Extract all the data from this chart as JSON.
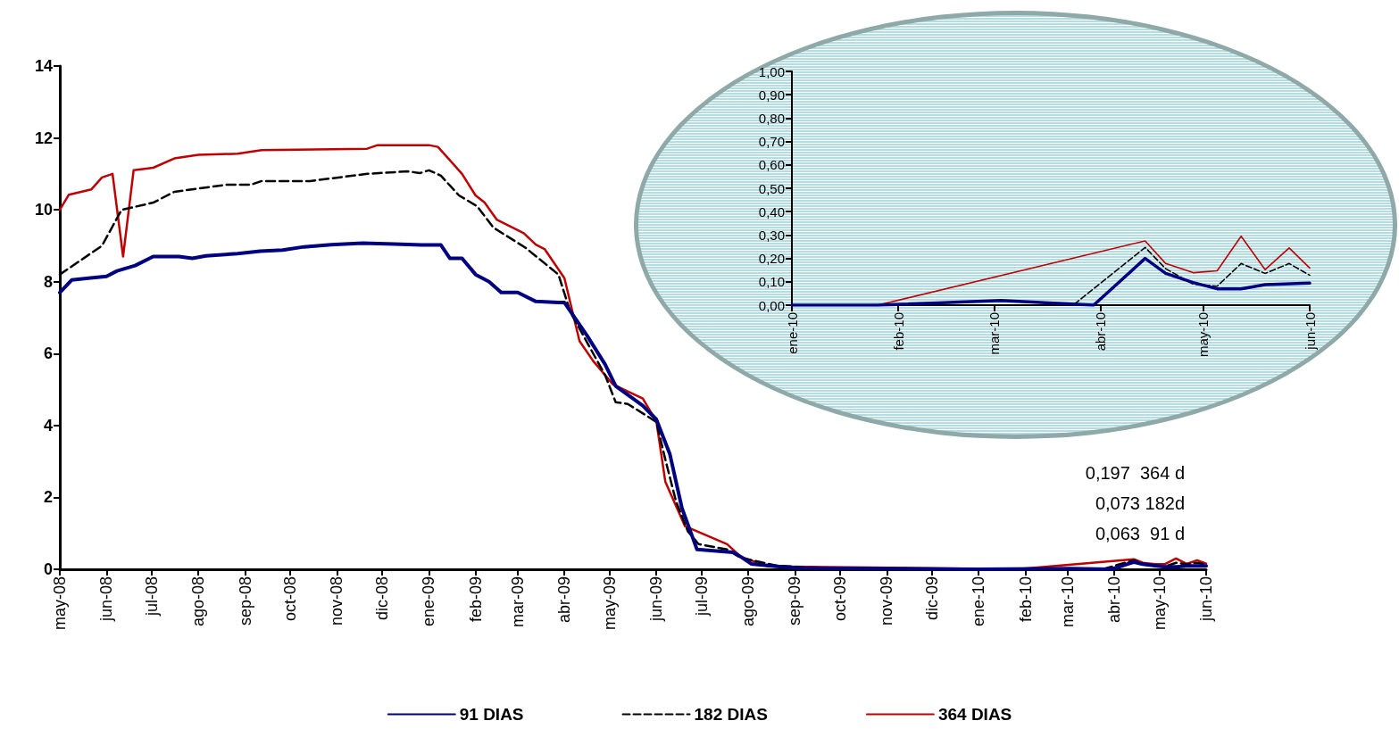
{
  "chart_data": [
    {
      "type": "line",
      "xlim": [
        "2008-05-01",
        "2010-06-01"
      ],
      "ylim": [
        0,
        14
      ],
      "yticks": [
        0,
        2,
        4,
        6,
        8,
        10,
        12,
        14
      ],
      "xticks": [
        {
          "value": "2008-05-01",
          "label": "may-08"
        },
        {
          "value": "2008-06-01",
          "label": "jun-08"
        },
        {
          "value": "2008-07-01",
          "label": "jul-08"
        },
        {
          "value": "2008-08-01",
          "label": "ago-08"
        },
        {
          "value": "2008-09-01",
          "label": "sep-08"
        },
        {
          "value": "2008-10-01",
          "label": "oct-08"
        },
        {
          "value": "2008-11-01",
          "label": "nov-08"
        },
        {
          "value": "2008-12-01",
          "label": "dic-08"
        },
        {
          "value": "2009-01-01",
          "label": "ene-09"
        },
        {
          "value": "2009-02-01",
          "label": "feb-09"
        },
        {
          "value": "2009-03-01",
          "label": "mar-09"
        },
        {
          "value": "2009-04-01",
          "label": "abr-09"
        },
        {
          "value": "2009-05-01",
          "label": "may-09"
        },
        {
          "value": "2009-06-01",
          "label": "jun-09"
        },
        {
          "value": "2009-07-01",
          "label": "jul-09"
        },
        {
          "value": "2009-08-01",
          "label": "ago-09"
        },
        {
          "value": "2009-09-01",
          "label": "sep-09"
        },
        {
          "value": "2009-10-01",
          "label": "oct-09"
        },
        {
          "value": "2009-11-01",
          "label": "nov-09"
        },
        {
          "value": "2009-12-01",
          "label": "dic-09"
        },
        {
          "value": "2010-01-01",
          "label": "ene-10"
        },
        {
          "value": "2010-02-01",
          "label": "feb-10"
        },
        {
          "value": "2010-03-01",
          "label": "mar-10"
        },
        {
          "value": "2010-04-01",
          "label": "abr-10"
        },
        {
          "value": "2010-05-01",
          "label": "may-10"
        },
        {
          "value": "2010-06-01",
          "label": "jun-10"
        }
      ],
      "grid": false,
      "legend": "bottom",
      "marker": "none",
      "annotations": [
        "0,197  364 d",
        "0,073 182d",
        "0,063  91 d"
      ],
      "series": [
        {
          "name": "91 DIAS",
          "color": "#000080",
          "line_style": "solid",
          "x": [
            "2008-05-01",
            "2008-05-09",
            "2008-05-20",
            "2008-06-01",
            "2008-06-08",
            "2008-06-20",
            "2008-07-02",
            "2008-07-19",
            "2008-07-28",
            "2008-08-06",
            "2008-08-27",
            "2008-09-11",
            "2008-09-26",
            "2008-10-10",
            "2008-10-28",
            "2008-11-18",
            "2008-12-09",
            "2008-12-27",
            "2009-01-09",
            "2009-01-15",
            "2009-01-23",
            "2009-02-01",
            "2009-02-10",
            "2009-02-18",
            "2009-03-01",
            "2009-03-13",
            "2009-03-28",
            "2009-04-01",
            "2009-04-16",
            "2009-04-28",
            "2009-05-05",
            "2009-05-23",
            "2009-06-01",
            "2009-06-10",
            "2009-06-18",
            "2009-06-28",
            "2009-07-22",
            "2009-07-27",
            "2009-08-03",
            "2009-08-20",
            "2009-09-02",
            "2010-01-01",
            "2010-03-03",
            "2010-03-30",
            "2010-04-14",
            "2010-04-20",
            "2010-04-28",
            "2010-05-05",
            "2010-05-12",
            "2010-05-19",
            "2010-06-01"
          ],
          "values": [
            7.7,
            8.05,
            8.1,
            8.15,
            8.3,
            8.45,
            8.7,
            8.7,
            8.65,
            8.72,
            8.78,
            8.85,
            8.88,
            8.97,
            9.03,
            9.07,
            9.05,
            9.02,
            9.02,
            8.65,
            8.65,
            8.2,
            8.0,
            7.7,
            7.7,
            7.45,
            7.42,
            7.42,
            6.5,
            5.7,
            5.1,
            4.55,
            4.17,
            3.2,
            1.7,
            0.55,
            0.47,
            0.35,
            0.15,
            0.08,
            0.03,
            0.0,
            0.02,
            0.0,
            0.2,
            0.14,
            0.1,
            0.07,
            0.07,
            0.09,
            0.09
          ]
        },
        {
          "name": "182 DIAS",
          "color": "#000000",
          "line_style": "dashed",
          "x": [
            "2008-05-01",
            "2008-05-29",
            "2008-06-11",
            "2008-07-02",
            "2008-07-16",
            "2008-08-20",
            "2008-09-05",
            "2008-09-12",
            "2008-10-14",
            "2008-11-21",
            "2008-12-18",
            "2008-12-26",
            "2009-01-01",
            "2009-01-09",
            "2009-01-21",
            "2009-02-02",
            "2009-02-13",
            "2009-03-06",
            "2009-03-28",
            "2009-04-05",
            "2009-04-28",
            "2009-05-05",
            "2009-05-13",
            "2009-06-01",
            "2009-06-07",
            "2009-06-14",
            "2009-06-22",
            "2009-06-29",
            "2009-07-18",
            "2009-07-27",
            "2009-08-20",
            "2009-09-10",
            "2010-01-01",
            "2010-03-24",
            "2010-04-14",
            "2010-04-20",
            "2010-04-28",
            "2010-05-05",
            "2010-05-12",
            "2010-05-19",
            "2010-05-26",
            "2010-06-01"
          ],
          "values": [
            8.2,
            9.0,
            10.0,
            10.2,
            10.5,
            10.7,
            10.7,
            10.8,
            10.8,
            11.0,
            11.07,
            11.02,
            11.1,
            10.95,
            10.4,
            10.1,
            9.5,
            8.95,
            8.2,
            7.15,
            5.4,
            4.65,
            4.6,
            4.1,
            3.05,
            1.9,
            1.05,
            0.7,
            0.55,
            0.32,
            0.1,
            0.05,
            0.0,
            0.0,
            0.25,
            0.16,
            0.09,
            0.08,
            0.18,
            0.14,
            0.18,
            0.13
          ]
        },
        {
          "name": "364 DIAS",
          "color": "#c00000",
          "line_style": "solid",
          "x": [
            "2008-05-01",
            "2008-05-07",
            "2008-05-22",
            "2008-05-29",
            "2008-06-05",
            "2008-06-12",
            "2008-06-19",
            "2008-07-02",
            "2008-07-16",
            "2008-08-01",
            "2008-08-27",
            "2008-09-12",
            "2008-11-21",
            "2008-11-28",
            "2009-01-01",
            "2009-01-07",
            "2009-01-23",
            "2009-02-01",
            "2009-02-07",
            "2009-02-15",
            "2009-03-05",
            "2009-03-13",
            "2009-03-19",
            "2009-04-01",
            "2009-04-11",
            "2009-04-20",
            "2009-05-03",
            "2009-05-23",
            "2009-06-01",
            "2009-06-07",
            "2009-06-20",
            "2009-07-01",
            "2009-07-18",
            "2009-07-27",
            "2009-08-14",
            "2010-01-26",
            "2010-04-14",
            "2010-04-20",
            "2010-04-28",
            "2010-05-05",
            "2010-05-12",
            "2010-05-19",
            "2010-05-26",
            "2010-06-01"
          ],
          "values": [
            10.0,
            10.42,
            10.57,
            10.9,
            11.0,
            8.7,
            11.1,
            11.17,
            11.43,
            11.53,
            11.56,
            11.66,
            11.7,
            11.8,
            11.8,
            11.75,
            11.0,
            10.4,
            10.2,
            9.73,
            9.35,
            9.03,
            8.9,
            8.1,
            6.35,
            5.8,
            5.15,
            4.75,
            4.12,
            2.43,
            1.2,
            1.0,
            0.7,
            0.35,
            0.08,
            0.0,
            0.28,
            0.18,
            0.14,
            0.15,
            0.3,
            0.15,
            0.25,
            0.16
          ]
        }
      ]
    },
    {
      "type": "line",
      "xlim": [
        "2010-01-01",
        "2010-06-01"
      ],
      "ylim": [
        0,
        1
      ],
      "yticks": [
        {
          "value": 0,
          "label": "0,00"
        },
        {
          "value": 0.1,
          "label": "0,10"
        },
        {
          "value": 0.2,
          "label": "0,20"
        },
        {
          "value": 0.3,
          "label": "0,30"
        },
        {
          "value": 0.4,
          "label": "0,40"
        },
        {
          "value": 0.5,
          "label": "0,50"
        },
        {
          "value": 0.6,
          "label": "0,60"
        },
        {
          "value": 0.7,
          "label": "0,70"
        },
        {
          "value": 0.8,
          "label": "0,80"
        },
        {
          "value": 0.9,
          "label": "0,90"
        },
        {
          "value": 1,
          "label": "1,00"
        }
      ],
      "xticks": [
        {
          "value": "2010-01-01",
          "label": "ene-10"
        },
        {
          "value": "2010-02-01",
          "label": "feb-10"
        },
        {
          "value": "2010-03-01",
          "label": "mar-10"
        },
        {
          "value": "2010-04-01",
          "label": "abr-10"
        },
        {
          "value": "2010-05-01",
          "label": "may-10"
        },
        {
          "value": "2010-06-01",
          "label": "jun-10"
        }
      ],
      "grid": false,
      "marker": "none",
      "series": [
        {
          "color": "#000080",
          "line_style": "solid",
          "x": [
            "2010-01-01",
            "2010-01-26",
            "2010-03-03",
            "2010-03-30",
            "2010-04-14",
            "2010-04-20",
            "2010-04-28",
            "2010-05-05",
            "2010-05-12",
            "2010-05-19",
            "2010-06-01"
          ],
          "values": [
            0.0,
            0.0,
            0.02,
            0.0,
            0.2,
            0.136,
            0.097,
            0.07,
            0.07,
            0.088,
            0.094
          ]
        },
        {
          "color": "#000000",
          "line_style": "dashed",
          "x": [
            "2010-01-01",
            "2010-03-24",
            "2010-04-14",
            "2010-04-20",
            "2010-04-28",
            "2010-05-05",
            "2010-05-12",
            "2010-05-19",
            "2010-05-26",
            "2010-06-01"
          ],
          "values": [
            0.0,
            0.0,
            0.247,
            0.156,
            0.09,
            0.081,
            0.178,
            0.136,
            0.178,
            0.128
          ]
        },
        {
          "color": "#c00000",
          "line_style": "solid",
          "x": [
            "2010-01-01",
            "2010-01-26",
            "2010-04-14",
            "2010-04-20",
            "2010-04-28",
            "2010-05-05",
            "2010-05-12",
            "2010-05-19",
            "2010-05-26",
            "2010-06-01"
          ],
          "values": [
            0.0,
            0.0,
            0.275,
            0.178,
            0.139,
            0.147,
            0.295,
            0.152,
            0.245,
            0.159
          ]
        }
      ]
    }
  ]
}
